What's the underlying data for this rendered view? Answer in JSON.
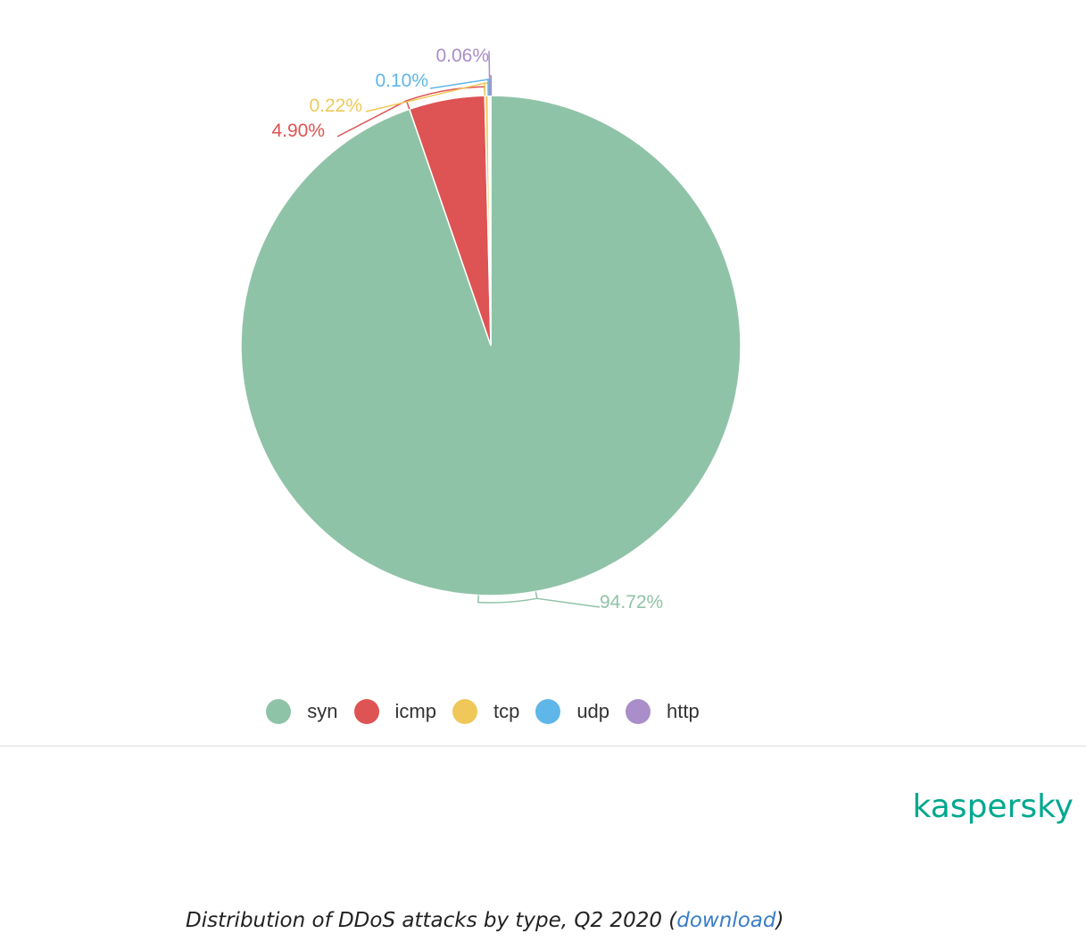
{
  "chart_data": {
    "type": "pie",
    "title": "",
    "slices": [
      {
        "name": "syn",
        "value": 94.72,
        "label": "94.72%",
        "color": "#8fc3a8"
      },
      {
        "name": "icmp",
        "value": 4.9,
        "label": "4.90%",
        "color": "#de5353"
      },
      {
        "name": "tcp",
        "value": 0.22,
        "label": "0.22%",
        "color": "#f0c85a"
      },
      {
        "name": "udp",
        "value": 0.1,
        "label": "0.10%",
        "color": "#5fb6e8"
      },
      {
        "name": "http",
        "value": 0.06,
        "label": "0.06%",
        "color": "#a98ec9"
      }
    ],
    "legend_position": "bottom"
  },
  "legend": {
    "items": [
      {
        "label": "syn",
        "color": "#8fc3a8"
      },
      {
        "label": "icmp",
        "color": "#de5353"
      },
      {
        "label": "tcp",
        "color": "#f0c85a"
      },
      {
        "label": "udp",
        "color": "#5fb6e8"
      },
      {
        "label": "http",
        "color": "#a98ec9"
      }
    ]
  },
  "brand": {
    "logo_text": "kaspersky",
    "color": "#00a88e"
  },
  "caption": {
    "text": "Distribution of DDoS attacks by type, Q2 2020 (",
    "link_text": "download",
    "close": ")"
  }
}
